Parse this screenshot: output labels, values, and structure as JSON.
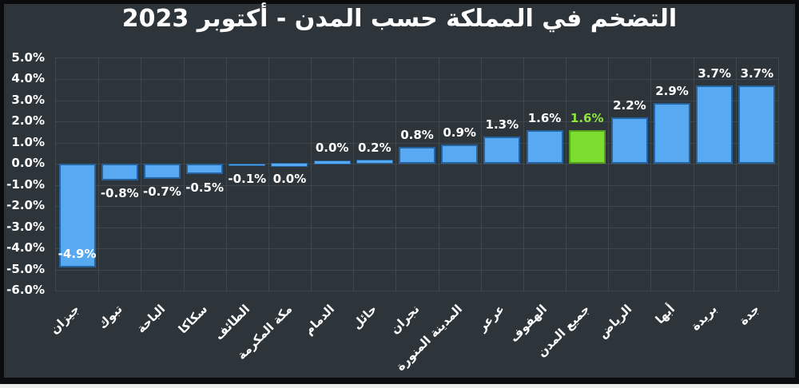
{
  "page": {
    "outer_background": "#E9EDEC"
  },
  "frame": {
    "background": "#2D353A",
    "border_color": "#0A0C0D"
  },
  "chart_data": {
    "type": "bar",
    "title": "التضخم في المملكة حسب المدن - أكتوبر 2023",
    "categories": [
      "جيزان",
      "تبوك",
      "الباحة",
      "سكاكا",
      "الطائف",
      "مكة المكرمة",
      "الدمام",
      "حائل",
      "نجران",
      "المدينة المنورة",
      "عرعر",
      "الهفوف",
      "جميع المدن",
      "الرياض",
      "أبها",
      "بريدة",
      "جدة"
    ],
    "values": [
      -4.9,
      -0.8,
      -0.7,
      -0.5,
      -0.1,
      0.0,
      0.0,
      0.2,
      0.8,
      0.9,
      1.3,
      1.6,
      1.6,
      2.2,
      2.9,
      3.7,
      3.7
    ],
    "value_labels": [
      "-4.9%",
      "-0.8%",
      "-0.7%",
      "-0.5%",
      "-0.1%",
      "0.0%",
      "0.0%",
      "0.2%",
      "0.8%",
      "0.9%",
      "1.3%",
      "1.6%",
      "1.6%",
      "2.2%",
      "2.9%",
      "3.7%",
      "3.7%"
    ],
    "label_placement": [
      "inside",
      "below",
      "below",
      "below",
      "below",
      "below",
      "above",
      "above",
      "above",
      "above",
      "above",
      "above",
      "above",
      "above",
      "above",
      "above",
      "above"
    ],
    "highlight_index": 12,
    "highlight_category": "جميع المدن",
    "ylim": [
      -6,
      5
    ],
    "ytick_labels": [
      "5.0%",
      "4.0%",
      "3.0%",
      "2.0%",
      "1.0%",
      "0.0%",
      "-1.0%",
      "-2.0%",
      "-3.0%",
      "-4.0%",
      "-5.0%",
      "-6.0%"
    ],
    "grid": true,
    "legend": "none",
    "colors": {
      "bar": "#57A9F1",
      "bar_border": "#24639E",
      "highlight_bar": "#7DDE2F",
      "highlight_bar_border": "#549F1C",
      "highlight_value_label": "#90E53C",
      "value_label": "#FFFFFF",
      "axis_label": "#FFFFFF",
      "title": "#FFFFFF",
      "gridline": "#3E474E",
      "plot_background": "#2D353A",
      "frame_border": "#0A0C0D"
    }
  }
}
